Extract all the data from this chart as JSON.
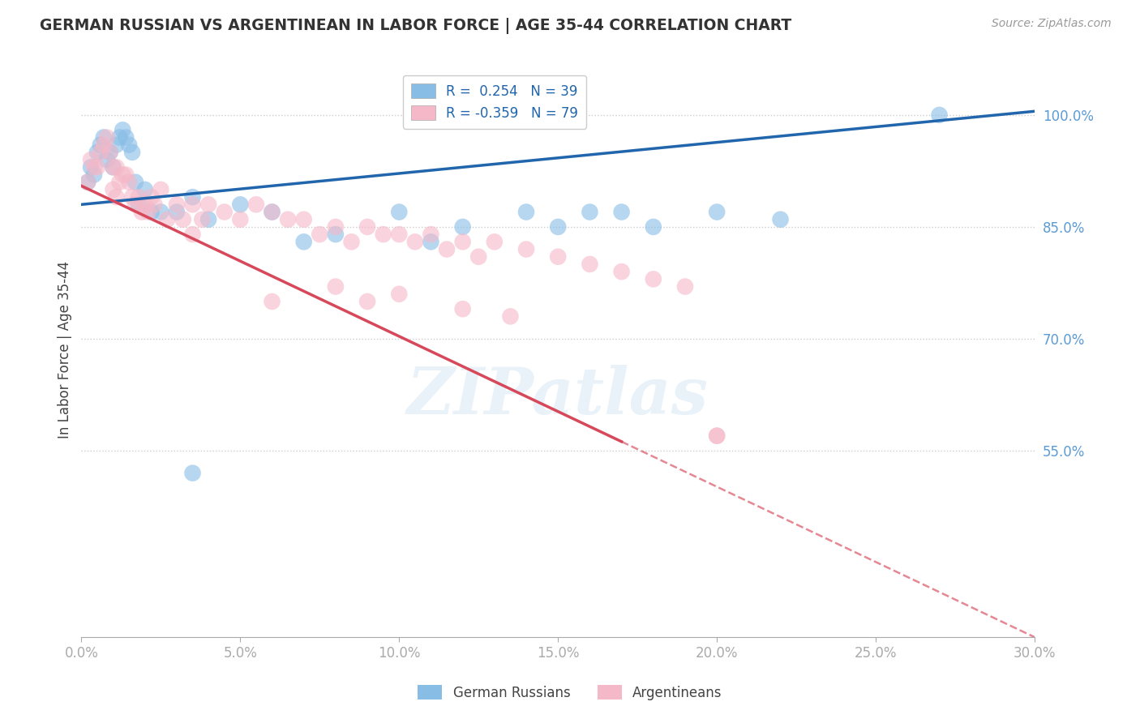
{
  "title": "GERMAN RUSSIAN VS ARGENTINEAN IN LABOR FORCE | AGE 35-44 CORRELATION CHART",
  "source": "Source: ZipAtlas.com",
  "ylabel": "In Labor Force | Age 35-44",
  "xlim": [
    0.0,
    30.0
  ],
  "ylim": [
    30.0,
    107.0
  ],
  "xtick_vals": [
    0.0,
    5.0,
    10.0,
    15.0,
    20.0,
    25.0,
    30.0
  ],
  "ytick_vals": [
    55.0,
    70.0,
    85.0,
    100.0
  ],
  "ytick_labels": [
    "55.0%",
    "70.0%",
    "85.0%",
    "100.0%"
  ],
  "xtick_labels": [
    "0.0%",
    "5.0%",
    "10.0%",
    "15.0%",
    "20.0%",
    "25.0%",
    "30.0%"
  ],
  "blue_color": "#88bde6",
  "pink_color": "#f5b8c8",
  "blue_line_color": "#2166ac",
  "pink_line_color": "#d6485a",
  "watermark": "ZIPatlas",
  "blue_line_x0": 0.0,
  "blue_line_y0": 88.0,
  "blue_line_x1": 30.0,
  "blue_line_y1": 100.5,
  "pink_line_x0": 0.0,
  "pink_line_y0": 90.5,
  "pink_line_x1": 30.0,
  "pink_line_y1": 30.0,
  "pink_solid_cutoff": 17.0,
  "blue_x": [
    0.2,
    0.3,
    0.4,
    0.5,
    0.6,
    0.7,
    0.8,
    0.9,
    1.0,
    1.1,
    1.2,
    1.3,
    1.4,
    1.5,
    1.6,
    1.7,
    1.8,
    2.0,
    2.2,
    2.5,
    3.0,
    3.5,
    4.0,
    5.0,
    6.0,
    7.0,
    8.0,
    10.0,
    11.0,
    12.0,
    14.0,
    15.0,
    16.0,
    17.0,
    18.0,
    20.0,
    22.0,
    27.0,
    3.5
  ],
  "blue_y": [
    91.0,
    93.0,
    92.0,
    95.0,
    96.0,
    97.0,
    94.0,
    95.0,
    93.0,
    96.0,
    97.0,
    98.0,
    97.0,
    96.0,
    95.0,
    91.0,
    88.0,
    90.0,
    87.0,
    87.0,
    87.0,
    89.0,
    86.0,
    88.0,
    87.0,
    83.0,
    84.0,
    87.0,
    83.0,
    85.0,
    87.0,
    85.0,
    87.0,
    87.0,
    85.0,
    87.0,
    86.0,
    100.0,
    52.0
  ],
  "pink_x": [
    0.2,
    0.3,
    0.4,
    0.5,
    0.6,
    0.7,
    0.8,
    0.9,
    1.0,
    1.0,
    1.1,
    1.1,
    1.2,
    1.3,
    1.4,
    1.5,
    1.6,
    1.7,
    1.8,
    1.9,
    2.0,
    2.1,
    2.2,
    2.3,
    2.5,
    2.7,
    3.0,
    3.2,
    3.5,
    3.5,
    3.8,
    4.0,
    4.5,
    5.0,
    5.5,
    6.0,
    6.5,
    7.0,
    7.5,
    8.0,
    8.5,
    9.0,
    9.5,
    10.0,
    10.5,
    11.0,
    11.5,
    12.0,
    12.5,
    13.0,
    14.0,
    15.0,
    16.0,
    17.0,
    18.0,
    19.0,
    20.0,
    6.0,
    10.0,
    12.0,
    13.5,
    8.0,
    9.0,
    20.0
  ],
  "pink_y": [
    91.0,
    94.0,
    93.0,
    93.0,
    95.0,
    96.0,
    97.0,
    95.0,
    93.0,
    90.0,
    93.0,
    89.0,
    91.0,
    92.0,
    92.0,
    91.0,
    89.0,
    88.0,
    89.0,
    87.0,
    88.0,
    87.0,
    89.0,
    88.0,
    90.0,
    86.0,
    88.0,
    86.0,
    88.0,
    84.0,
    86.0,
    88.0,
    87.0,
    86.0,
    88.0,
    87.0,
    86.0,
    86.0,
    84.0,
    85.0,
    83.0,
    85.0,
    84.0,
    84.0,
    83.0,
    84.0,
    82.0,
    83.0,
    81.0,
    83.0,
    82.0,
    81.0,
    80.0,
    79.0,
    78.0,
    77.0,
    57.0,
    75.0,
    76.0,
    74.0,
    73.0,
    77.0,
    75.0,
    57.0
  ]
}
